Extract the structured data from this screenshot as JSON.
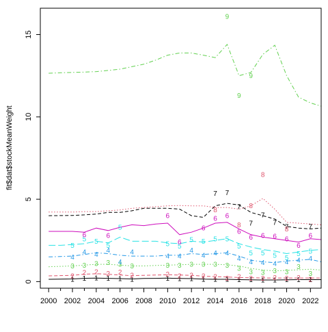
{
  "chart_data": {
    "type": "line",
    "ylabel": "fit$dat$stockMeanWeight",
    "xlabel": "",
    "title": "",
    "xlim": [
      1999.3,
      2022.9
    ],
    "ylim": [
      -0.4,
      16.6
    ],
    "grid": false,
    "legend": "none",
    "x_ticks": [
      2000,
      2002,
      2004,
      2006,
      2008,
      2010,
      2012,
      2014,
      2016,
      2018,
      2020,
      2022
    ],
    "y_ticks": [
      0,
      5,
      10,
      15
    ],
    "x_tick_labels": [
      "2000",
      "2002",
      "2004",
      "2006",
      "2008",
      "2010",
      "2012",
      "2014",
      "2016",
      "2018",
      "2020",
      "2022"
    ],
    "y_tick_labels": [
      "0",
      "5",
      "10",
      "15"
    ],
    "series": [
      {
        "label": "1",
        "color": "#000000",
        "dash": "solid",
        "line_x": [
          2000,
          2002,
          2003,
          2004,
          2005,
          2006,
          2007,
          2008,
          2009,
          2010,
          2011,
          2012,
          2013,
          2014,
          2015,
          2016,
          2017,
          2018,
          2019,
          2020,
          2021,
          2022,
          2022.9
        ],
        "line_y": [
          0.14,
          0.16,
          0.2,
          0.21,
          0.2,
          0.18,
          0.16,
          0.19,
          0.2,
          0.21,
          0.19,
          0.18,
          0.15,
          0.14,
          0.14,
          0.12,
          0.11,
          0.1,
          0.1,
          0.11,
          0.12,
          0.12,
          0.12
        ],
        "points_x": [
          2002,
          2003,
          2004,
          2005,
          2006,
          2007,
          2010,
          2011,
          2012,
          2013,
          2014,
          2015,
          2016,
          2017,
          2018,
          2019,
          2020,
          2021,
          2022
        ],
        "points_y": [
          0.15,
          0.2,
          0.22,
          0.2,
          0.18,
          0.15,
          0.2,
          0.18,
          0.18,
          0.15,
          0.14,
          0.14,
          0.12,
          0.11,
          0.1,
          0.1,
          0.11,
          0.12,
          0.12
        ]
      },
      {
        "label": "2",
        "color": "#df536b",
        "dash": "dashed",
        "line_x": [
          2000,
          2002,
          2003,
          2004,
          2005,
          2006,
          2007,
          2008,
          2009,
          2010,
          2011,
          2012,
          2013,
          2014,
          2015,
          2016,
          2017,
          2018,
          2019,
          2020,
          2021,
          2022,
          2022.9
        ],
        "line_y": [
          0.35,
          0.38,
          0.45,
          0.48,
          0.45,
          0.4,
          0.36,
          0.38,
          0.4,
          0.42,
          0.4,
          0.38,
          0.33,
          0.3,
          0.28,
          0.25,
          0.23,
          0.22,
          0.22,
          0.22,
          0.22,
          0.22,
          0.22
        ],
        "points_x": [
          2002,
          2003,
          2004,
          2005,
          2006,
          2007,
          2010,
          2011,
          2012,
          2013,
          2014,
          2015,
          2016,
          2017,
          2018,
          2019,
          2020,
          2021,
          2022
        ],
        "points_y": [
          0.35,
          0.55,
          0.6,
          0.5,
          0.58,
          0.4,
          0.45,
          0.35,
          0.4,
          0.35,
          0.3,
          0.2,
          0.3,
          0.2,
          0.2,
          0.25,
          0.2,
          0.25,
          0.15
        ]
      },
      {
        "label": "3",
        "color": "#61d04f",
        "dash": "dotted",
        "line_x": [
          2000,
          2002,
          2003,
          2004,
          2005,
          2006,
          2007,
          2008,
          2009,
          2010,
          2011,
          2012,
          2013,
          2014,
          2015,
          2016,
          2017,
          2018,
          2019,
          2020,
          2021,
          2022,
          2022.9
        ],
        "line_y": [
          0.9,
          0.95,
          1.0,
          1.05,
          1.05,
          1.0,
          0.95,
          0.95,
          0.98,
          1.0,
          1.02,
          1.05,
          1.05,
          1.05,
          1.02,
          0.95,
          0.8,
          0.7,
          0.65,
          0.68,
          0.72,
          0.75,
          0.7
        ],
        "points_x": [
          2002,
          2003,
          2004,
          2005,
          2006,
          2007,
          2010,
          2011,
          2012,
          2013,
          2014,
          2015,
          2016,
          2017,
          2018,
          2019,
          2020,
          2021,
          2022
        ],
        "points_y": [
          0.95,
          1.0,
          1.1,
          1.15,
          1.05,
          0.95,
          1.0,
          1.0,
          1.05,
          1.05,
          1.05,
          1.0,
          0.8,
          0.6,
          0.55,
          0.65,
          0.6,
          0.9,
          0.5
        ]
      },
      {
        "label": "4",
        "color": "#2297e6",
        "dash": "dashdot",
        "line_x": [
          2000,
          2002,
          2003,
          2004,
          2005,
          2006,
          2007,
          2008,
          2009,
          2010,
          2011,
          2012,
          2013,
          2014,
          2015,
          2016,
          2017,
          2018,
          2019,
          2020,
          2021,
          2022,
          2022.9
        ],
        "line_y": [
          1.5,
          1.55,
          1.65,
          1.75,
          1.7,
          1.6,
          1.55,
          1.55,
          1.55,
          1.6,
          1.6,
          1.7,
          1.65,
          1.7,
          1.75,
          1.55,
          1.3,
          1.2,
          1.15,
          1.25,
          1.3,
          1.35,
          1.2
        ],
        "points_x": [
          2002,
          2003,
          2004,
          2005,
          2006,
          2007,
          2010,
          2011,
          2012,
          2013,
          2014,
          2015,
          2016,
          2017,
          2018,
          2019,
          2020,
          2021,
          2022
        ],
        "points_y": [
          1.5,
          1.8,
          1.65,
          1.9,
          1.2,
          1.8,
          1.55,
          1.55,
          1.9,
          1.6,
          1.75,
          1.75,
          1.4,
          1.2,
          1.15,
          1.1,
          1.2,
          1.3,
          1.4
        ]
      },
      {
        "label": "5",
        "color": "#28e2e5",
        "dash": "longdash",
        "line_x": [
          2000,
          2001,
          2002,
          2003,
          2004,
          2005,
          2006,
          2007,
          2008,
          2009,
          2010,
          2011,
          2012,
          2013,
          2014,
          2015,
          2016,
          2017,
          2018,
          2019,
          2020,
          2021,
          2022,
          2022.9
        ],
        "line_y": [
          2.2,
          2.2,
          2.25,
          2.3,
          2.45,
          2.35,
          2.7,
          2.45,
          2.45,
          2.45,
          2.35,
          2.3,
          2.45,
          2.4,
          2.5,
          2.6,
          2.3,
          2.1,
          1.95,
          1.85,
          1.7,
          1.8,
          1.9,
          1.95
        ],
        "points_x": [
          2002,
          2003,
          2004,
          2005,
          2006,
          2010,
          2011,
          2012,
          2013,
          2014,
          2015,
          2016,
          2017,
          2018,
          2019,
          2020,
          2021,
          2022
        ],
        "points_y": [
          2.2,
          2.6,
          2.45,
          2.2,
          3.3,
          2.3,
          2.15,
          2.55,
          2.45,
          2.6,
          2.6,
          2.15,
          1.75,
          1.75,
          1.6,
          1.45,
          1.7,
          1.85
        ]
      },
      {
        "label": "6",
        "color": "#cd0bbc",
        "dash": "solid",
        "line_x": [
          2000,
          2001,
          2002,
          2003,
          2004,
          2005,
          2006,
          2007,
          2008,
          2009,
          2010,
          2011,
          2012,
          2013,
          2014,
          2015,
          2016,
          2017,
          2018,
          2019,
          2020,
          2021,
          2022,
          2022.9
        ],
        "line_y": [
          3.05,
          3.05,
          3.05,
          3.0,
          3.25,
          3.1,
          3.3,
          3.45,
          3.4,
          3.5,
          3.55,
          2.85,
          3.0,
          3.25,
          3.55,
          3.6,
          3.2,
          2.85,
          2.7,
          2.6,
          2.5,
          2.4,
          2.6,
          2.55
        ],
        "points_x": [
          2003,
          2005,
          2010,
          2011,
          2013,
          2014,
          2015,
          2016,
          2017,
          2018,
          2019,
          2020,
          2021,
          2022
        ],
        "points_y": [
          2.85,
          2.8,
          4.0,
          2.4,
          3.25,
          3.85,
          4.0,
          3.05,
          2.7,
          2.8,
          2.75,
          2.6,
          2.2,
          2.8
        ]
      },
      {
        "label": "7",
        "color": "#000000",
        "dash": "dashed",
        "line_x": [
          2000,
          2002,
          2003,
          2004,
          2005,
          2006,
          2007,
          2008,
          2009,
          2010,
          2011,
          2012,
          2013,
          2014,
          2015,
          2016,
          2017,
          2018,
          2019,
          2020,
          2021,
          2022,
          2022.9
        ],
        "line_y": [
          4.0,
          4.02,
          4.05,
          4.1,
          4.2,
          4.2,
          4.3,
          4.45,
          4.45,
          4.45,
          4.4,
          4.0,
          3.9,
          4.6,
          4.75,
          4.65,
          4.2,
          4.0,
          3.8,
          3.35,
          3.25,
          3.2,
          3.25
        ],
        "points_x": [
          2014,
          2015,
          2016,
          2017,
          2018,
          2019,
          2020,
          2022
        ],
        "points_y": [
          5.35,
          5.4,
          4.55,
          3.55,
          4.05,
          3.6,
          3.35,
          3.35
        ]
      },
      {
        "label": "8",
        "color": "#df536b",
        "dash": "dotted",
        "line_x": [
          2000,
          2002,
          2003,
          2004,
          2005,
          2006,
          2007,
          2008,
          2009,
          2010,
          2011,
          2012,
          2013,
          2014,
          2015,
          2016,
          2017,
          2018,
          2019,
          2020,
          2021,
          2022,
          2022.9
        ],
        "line_y": [
          4.22,
          4.22,
          4.25,
          4.25,
          4.3,
          4.35,
          4.45,
          4.5,
          4.55,
          4.6,
          4.62,
          4.6,
          4.6,
          4.5,
          4.5,
          4.4,
          4.6,
          5.05,
          4.4,
          3.6,
          3.55,
          3.5,
          3.45
        ],
        "points_x": [
          2014,
          2016,
          2017,
          2018,
          2020
        ],
        "points_y": [
          4.35,
          3.45,
          4.6,
          6.5,
          3.2
        ]
      },
      {
        "label": "9",
        "color": "#61d04f",
        "dash": "dashdot",
        "line_x": [
          2000,
          2001,
          2002,
          2003,
          2004,
          2005,
          2006,
          2007,
          2008,
          2009,
          2010,
          2011,
          2012,
          2013,
          2014,
          2015,
          2016,
          2017,
          2018,
          2019,
          2020,
          2021,
          2022,
          2022.9
        ],
        "line_y": [
          12.65,
          12.68,
          12.7,
          12.72,
          12.75,
          12.82,
          12.9,
          13.05,
          13.2,
          13.45,
          13.75,
          13.88,
          13.88,
          13.75,
          13.6,
          14.4,
          12.5,
          12.7,
          13.8,
          14.35,
          12.5,
          11.2,
          10.85,
          10.65
        ],
        "points_x": [
          2015,
          2016,
          2017
        ],
        "points_y": [
          16.1,
          11.3,
          12.5
        ]
      }
    ]
  }
}
